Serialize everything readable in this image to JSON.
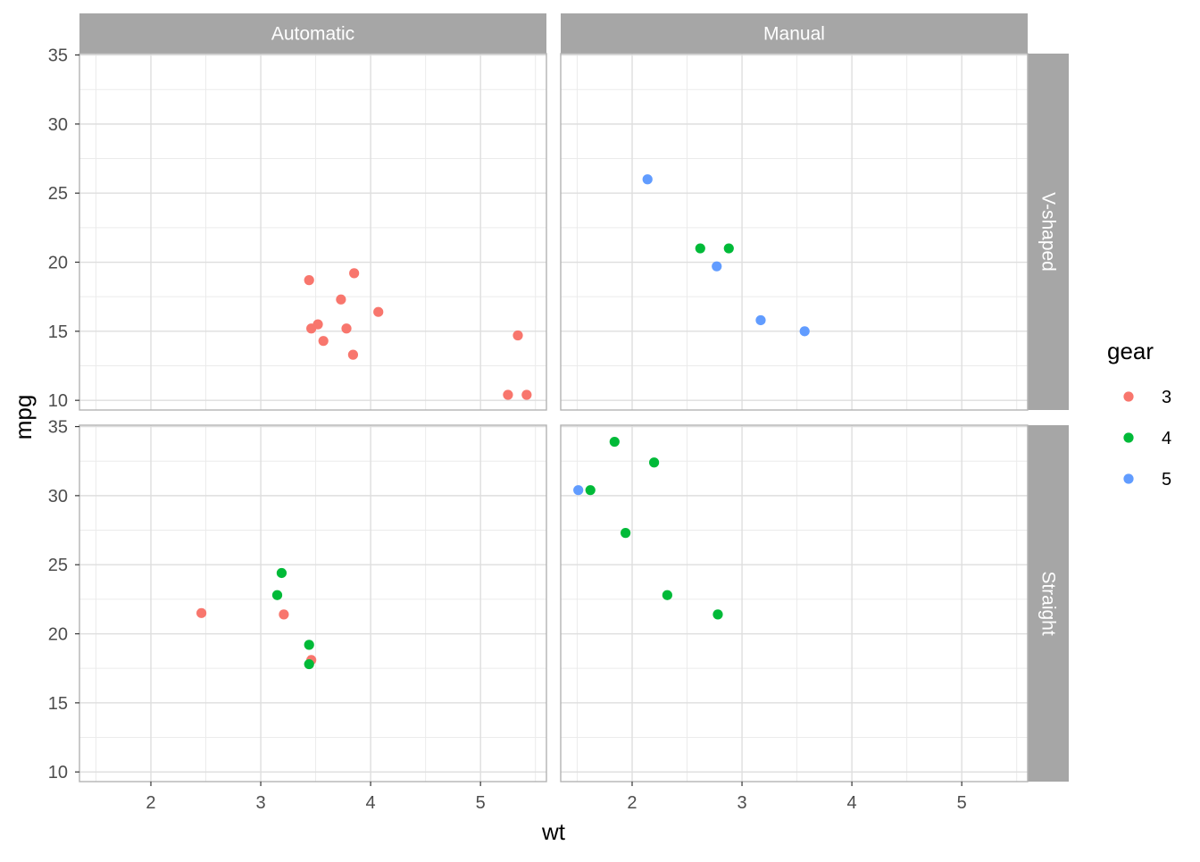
{
  "chart_data": {
    "type": "scatter",
    "facets": {
      "columns": [
        "Automatic",
        "Manual"
      ],
      "rows": [
        "V-shaped",
        "Straight"
      ]
    },
    "xlabel": "wt",
    "ylabel": "mpg",
    "xlim": [
      1.35,
      5.6
    ],
    "ylim": [
      9.3,
      35.1
    ],
    "x_ticks": [
      2,
      3,
      4,
      5
    ],
    "y_ticks": [
      10,
      15,
      20,
      25,
      30,
      35
    ],
    "grid": true,
    "legend": {
      "title": "gear",
      "position": "right",
      "entries": [
        {
          "label": "3",
          "color": "#F8766D"
        },
        {
          "label": "4",
          "color": "#00BA38"
        },
        {
          "label": "5",
          "color": "#619CFF"
        }
      ]
    },
    "panels": [
      {
        "column": "Automatic",
        "row": "V-shaped",
        "points": [
          {
            "x": 3.44,
            "y": 18.7,
            "gear": "3"
          },
          {
            "x": 3.46,
            "y": 15.2,
            "gear": "3"
          },
          {
            "x": 3.52,
            "y": 15.5,
            "gear": "3"
          },
          {
            "x": 3.57,
            "y": 14.3,
            "gear": "3"
          },
          {
            "x": 3.73,
            "y": 17.3,
            "gear": "3"
          },
          {
            "x": 3.78,
            "y": 15.2,
            "gear": "3"
          },
          {
            "x": 3.84,
            "y": 13.3,
            "gear": "3"
          },
          {
            "x": 3.85,
            "y": 19.2,
            "gear": "3"
          },
          {
            "x": 4.07,
            "y": 16.4,
            "gear": "3"
          },
          {
            "x": 5.25,
            "y": 10.4,
            "gear": "3"
          },
          {
            "x": 5.34,
            "y": 14.7,
            "gear": "3"
          },
          {
            "x": 5.42,
            "y": 10.4,
            "gear": "3"
          }
        ]
      },
      {
        "column": "Manual",
        "row": "V-shaped",
        "points": [
          {
            "x": 2.14,
            "y": 26.0,
            "gear": "5"
          },
          {
            "x": 2.62,
            "y": 21.0,
            "gear": "4"
          },
          {
            "x": 2.77,
            "y": 19.7,
            "gear": "5"
          },
          {
            "x": 2.88,
            "y": 21.0,
            "gear": "4"
          },
          {
            "x": 3.17,
            "y": 15.8,
            "gear": "5"
          },
          {
            "x": 3.57,
            "y": 15.0,
            "gear": "5"
          }
        ]
      },
      {
        "column": "Automatic",
        "row": "Straight",
        "points": [
          {
            "x": 2.46,
            "y": 21.5,
            "gear": "3"
          },
          {
            "x": 3.15,
            "y": 22.8,
            "gear": "4"
          },
          {
            "x": 3.19,
            "y": 24.4,
            "gear": "4"
          },
          {
            "x": 3.21,
            "y": 21.4,
            "gear": "3"
          },
          {
            "x": 3.44,
            "y": 19.2,
            "gear": "4"
          },
          {
            "x": 3.46,
            "y": 18.1,
            "gear": "3"
          },
          {
            "x": 3.44,
            "y": 17.8,
            "gear": "4"
          }
        ]
      },
      {
        "column": "Manual",
        "row": "Straight",
        "points": [
          {
            "x": 1.51,
            "y": 30.4,
            "gear": "5"
          },
          {
            "x": 1.62,
            "y": 30.4,
            "gear": "4"
          },
          {
            "x": 1.84,
            "y": 33.9,
            "gear": "4"
          },
          {
            "x": 1.94,
            "y": 27.3,
            "gear": "4"
          },
          {
            "x": 2.2,
            "y": 32.4,
            "gear": "4"
          },
          {
            "x": 2.32,
            "y": 22.8,
            "gear": "4"
          },
          {
            "x": 2.78,
            "y": 21.4,
            "gear": "4"
          }
        ]
      }
    ]
  }
}
